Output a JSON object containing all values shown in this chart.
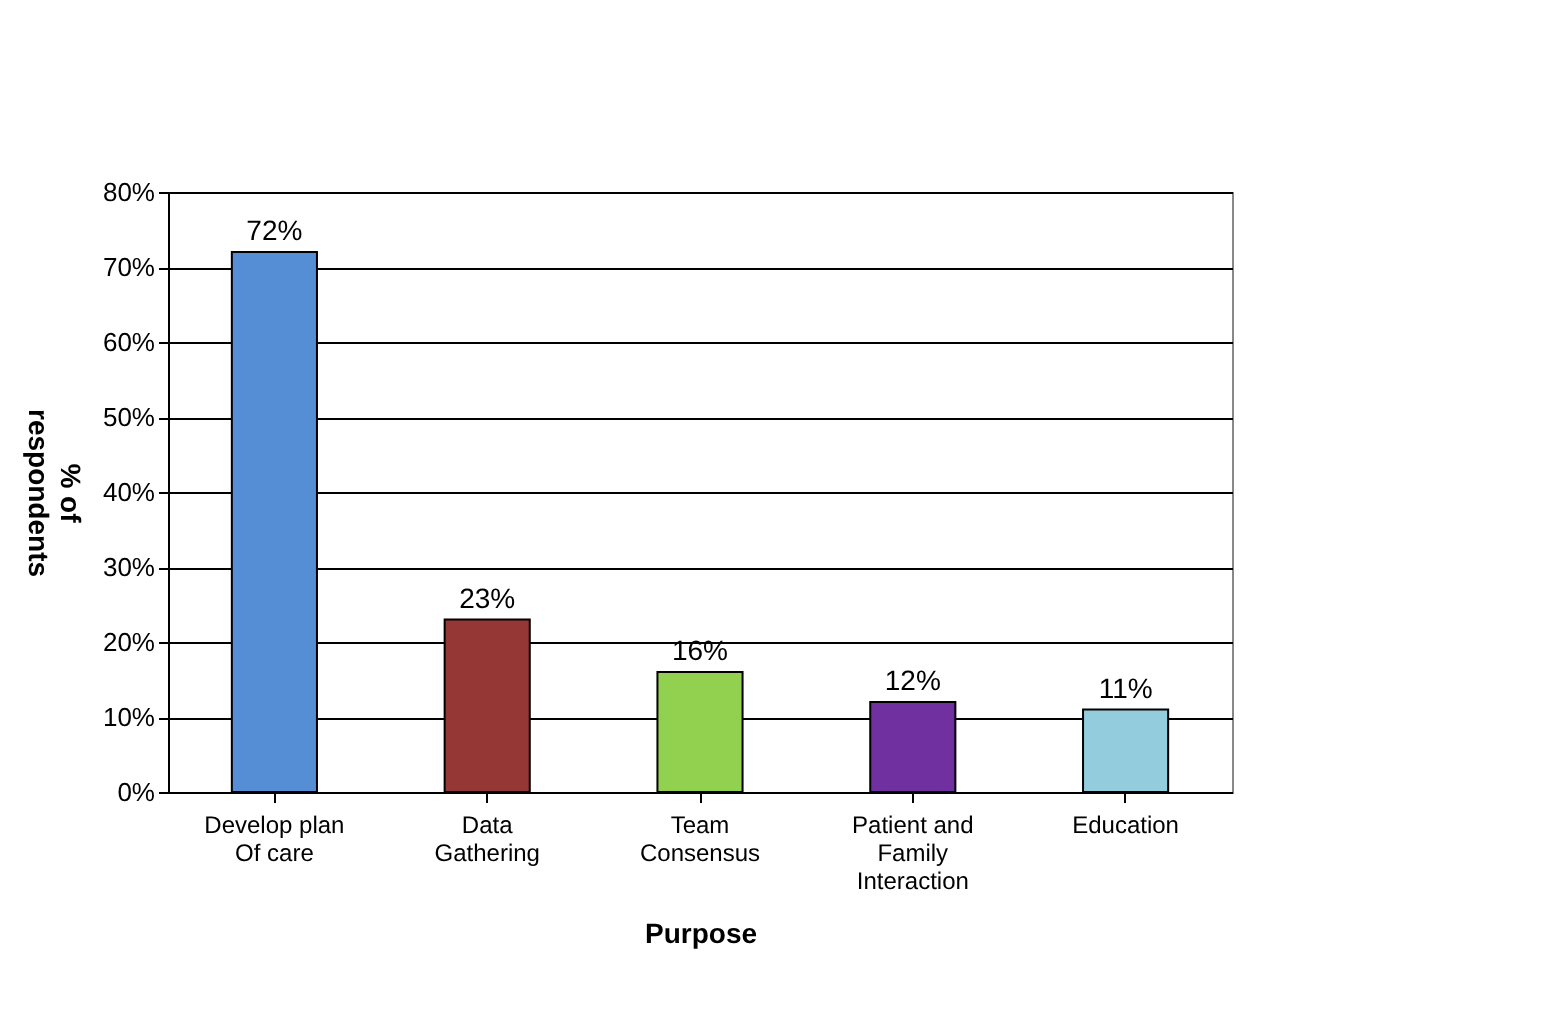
{
  "chart_data": {
    "type": "bar",
    "xlabel": "Purpose",
    "ylabel": "% of\nrespondents",
    "categories": [
      "Develop plan\nOf care",
      "Data\nGathering",
      "Team\nConsensus",
      "Patient and\nFamily\nInteraction",
      "Education"
    ],
    "values": [
      72,
      23,
      16,
      12,
      11
    ],
    "colors": [
      "#558ed5",
      "#953735",
      "#92d050",
      "#7030a0",
      "#93cddd"
    ],
    "value_labels": [
      "72%",
      "23%",
      "16%",
      "12%",
      "11%"
    ],
    "ylim": [
      0,
      80
    ],
    "yticks": [
      {
        "value": 0,
        "label": "0%"
      },
      {
        "value": 10,
        "label": "10%"
      },
      {
        "value": 20,
        "label": "20%"
      },
      {
        "value": 30,
        "label": "30%"
      },
      {
        "value": 40,
        "label": "40%"
      },
      {
        "value": 50,
        "label": "50%"
      },
      {
        "value": 60,
        "label": "60%"
      },
      {
        "value": 70,
        "label": "70%"
      },
      {
        "value": 80,
        "label": "80%"
      }
    ],
    "grid": "y",
    "legend": false
  }
}
